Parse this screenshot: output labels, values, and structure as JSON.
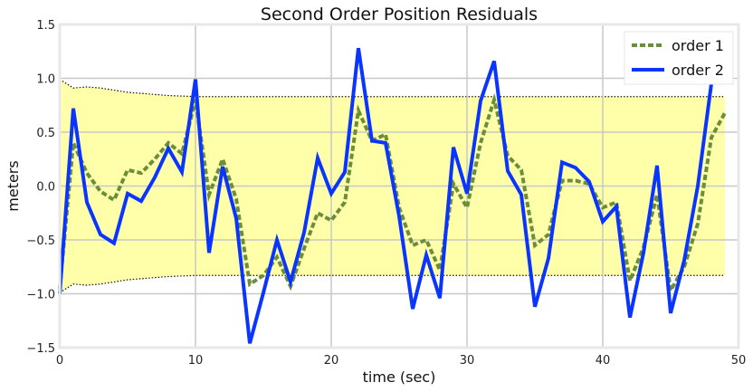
{
  "chart_data": {
    "type": "line",
    "title": "Second Order Position Residuals",
    "xlabel": "time (sec)",
    "ylabel": "meters",
    "xlim": [
      0,
      50
    ],
    "ylim": [
      -1.5,
      1.5
    ],
    "xticks": [
      0,
      10,
      20,
      30,
      40,
      50
    ],
    "yticks": [
      -1.5,
      -1.0,
      -0.5,
      0.0,
      0.5,
      1.0,
      1.5
    ],
    "xtick_labels": [
      "0",
      "10",
      "20",
      "30",
      "40",
      "50"
    ],
    "ytick_labels": [
      "−1.5",
      "−1.0",
      "−0.5",
      "0.0",
      "0.5",
      "1.0",
      "1.5"
    ],
    "grid": true,
    "legend_position": "top-right",
    "colors": {
      "band": "#ffffaa",
      "order1": "#6b8e3a",
      "order2": "#0a35ff",
      "grid": "#c8c8c8"
    },
    "band": {
      "x": [
        0,
        1,
        2,
        3,
        4,
        5,
        6,
        7,
        8,
        9,
        10,
        15,
        20,
        30,
        40,
        49
      ],
      "upper": [
        0.99,
        0.91,
        0.92,
        0.91,
        0.89,
        0.87,
        0.86,
        0.85,
        0.84,
        0.835,
        0.83,
        0.83,
        0.83,
        0.83,
        0.83,
        0.83
      ],
      "lower": [
        -0.99,
        -0.91,
        -0.92,
        -0.91,
        -0.89,
        -0.87,
        -0.86,
        -0.85,
        -0.84,
        -0.835,
        -0.83,
        -0.83,
        -0.83,
        -0.83,
        -0.83,
        -0.83
      ]
    },
    "series": [
      {
        "name": "order 1",
        "style": "dashed",
        "x": [
          0,
          1,
          2,
          3,
          4,
          5,
          6,
          7,
          8,
          9,
          10,
          11,
          12,
          13,
          14,
          15,
          16,
          17,
          18,
          19,
          20,
          21,
          22,
          23,
          24,
          25,
          26,
          27,
          28,
          29,
          30,
          31,
          32,
          33,
          34,
          35,
          36,
          37,
          38,
          39,
          40,
          41,
          42,
          43,
          44,
          45,
          46,
          47,
          48,
          49
        ],
        "values": [
          -0.95,
          0.4,
          0.12,
          -0.05,
          -0.13,
          0.15,
          0.12,
          0.25,
          0.4,
          0.3,
          0.8,
          -0.08,
          0.25,
          -0.12,
          -0.91,
          -0.83,
          -0.66,
          -0.93,
          -0.58,
          -0.25,
          -0.32,
          -0.15,
          0.7,
          0.42,
          0.48,
          -0.2,
          -0.55,
          -0.5,
          -0.78,
          0.02,
          -0.2,
          0.4,
          0.8,
          0.28,
          0.15,
          -0.55,
          -0.45,
          0.05,
          0.05,
          0.02,
          -0.2,
          -0.15,
          -0.88,
          -0.57,
          -0.08,
          -0.97,
          -0.75,
          -0.35,
          0.45,
          0.68
        ]
      },
      {
        "name": "order 2",
        "style": "solid",
        "x": [
          0,
          1,
          2,
          3,
          4,
          5,
          6,
          7,
          8,
          9,
          10,
          11,
          12,
          13,
          14,
          15,
          16,
          17,
          18,
          19,
          20,
          21,
          22,
          23,
          24,
          25,
          26,
          27,
          28,
          29,
          30,
          31,
          32,
          33,
          34,
          35,
          36,
          37,
          38,
          39,
          40,
          41,
          42,
          43,
          44,
          45,
          46,
          47,
          48
        ],
        "values": [
          -1.0,
          0.72,
          -0.15,
          -0.45,
          -0.53,
          -0.07,
          -0.14,
          0.08,
          0.35,
          0.13,
          0.99,
          -0.62,
          0.18,
          -0.3,
          -1.46,
          -0.99,
          -0.5,
          -0.89,
          -0.43,
          0.26,
          -0.07,
          0.13,
          1.28,
          0.42,
          0.4,
          -0.28,
          -1.14,
          -0.64,
          -1.04,
          0.36,
          -0.07,
          0.79,
          1.16,
          0.14,
          -0.08,
          -1.12,
          -0.67,
          0.22,
          0.17,
          0.04,
          -0.33,
          -0.19,
          -1.22,
          -0.62,
          0.19,
          -1.18,
          -0.69,
          0.0,
          0.95
        ]
      }
    ]
  }
}
